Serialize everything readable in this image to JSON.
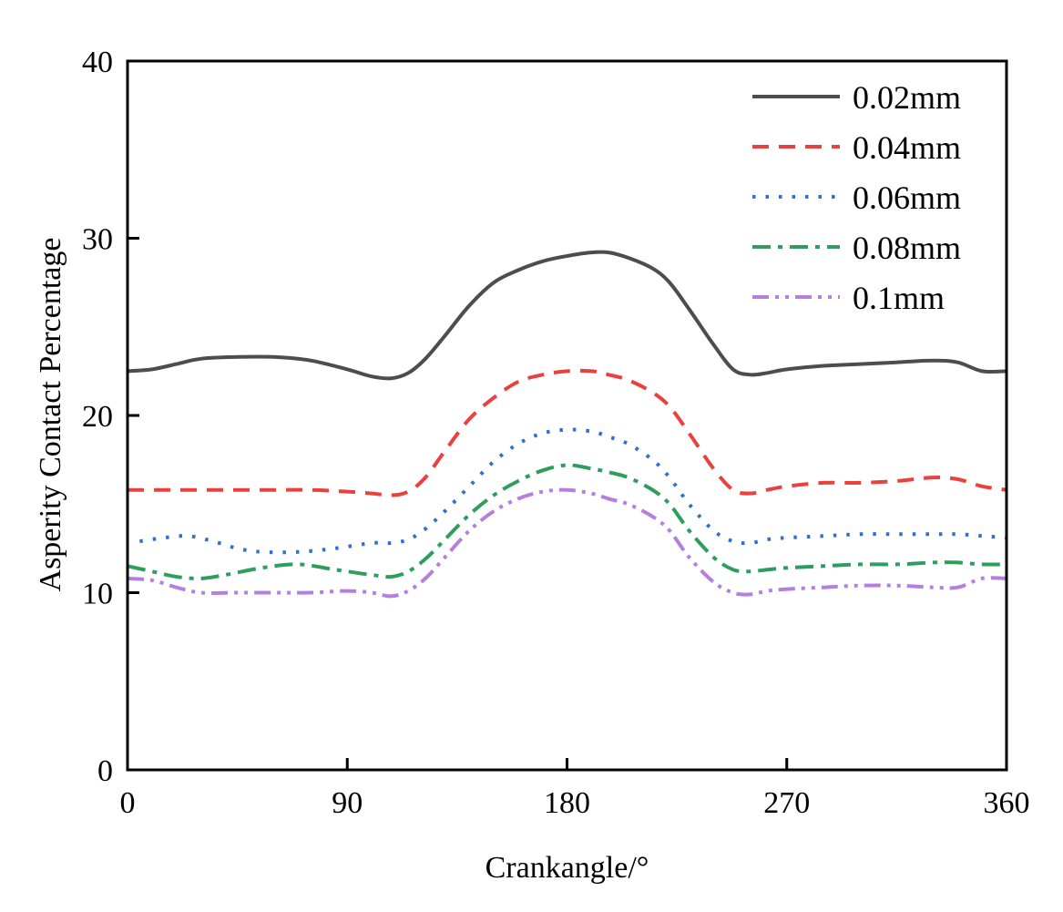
{
  "chart_data": {
    "type": "line",
    "title": "",
    "xlabel": "Crankangle/°",
    "ylabel": "Asperity Contact Percentage",
    "xlim": [
      0,
      360
    ],
    "ylim": [
      0,
      40
    ],
    "xticks": [
      0,
      90,
      180,
      270,
      360
    ],
    "yticks": [
      0,
      10,
      20,
      30,
      40
    ],
    "xtick_labels": [
      "0",
      "90",
      "180",
      "270",
      "360"
    ],
    "ytick_labels": [
      "0",
      "10",
      "20",
      "30",
      "40"
    ],
    "grid": false,
    "legend_position": "top-right",
    "series": [
      {
        "name": "0.02mm",
        "color": "#4d4d4d",
        "dash": "solid",
        "x": [
          0,
          10,
          20,
          30,
          45,
          60,
          75,
          90,
          100,
          108,
          115,
          122,
          130,
          140,
          150,
          160,
          170,
          180,
          190,
          197,
          205,
          215,
          222,
          230,
          240,
          248,
          255,
          262,
          270,
          285,
          300,
          315,
          330,
          340,
          350,
          360
        ],
        "y": [
          22.5,
          22.6,
          22.9,
          23.2,
          23.3,
          23.3,
          23.1,
          22.6,
          22.2,
          22.1,
          22.4,
          23.2,
          24.5,
          26.2,
          27.5,
          28.2,
          28.7,
          29.0,
          29.2,
          29.2,
          28.9,
          28.3,
          27.5,
          26.0,
          24.0,
          22.6,
          22.3,
          22.4,
          22.6,
          22.8,
          22.9,
          23.0,
          23.1,
          23.0,
          22.5,
          22.5
        ]
      },
      {
        "name": "0.04mm",
        "color": "#e8413e",
        "dash": "dashed",
        "x": [
          0,
          15,
          30,
          45,
          60,
          75,
          90,
          100,
          108,
          115,
          122,
          130,
          140,
          150,
          160,
          170,
          180,
          190,
          197,
          205,
          215,
          222,
          230,
          240,
          248,
          255,
          262,
          270,
          285,
          300,
          315,
          330,
          340,
          350,
          360
        ],
        "y": [
          15.8,
          15.8,
          15.8,
          15.8,
          15.8,
          15.8,
          15.7,
          15.6,
          15.5,
          15.7,
          16.5,
          18.0,
          19.8,
          21.0,
          21.9,
          22.3,
          22.5,
          22.5,
          22.3,
          22.0,
          21.3,
          20.5,
          19.0,
          17.0,
          15.8,
          15.6,
          15.8,
          16.0,
          16.2,
          16.2,
          16.3,
          16.5,
          16.4,
          16.0,
          15.8
        ]
      },
      {
        "name": "0.06mm",
        "color": "#2e6fd0",
        "dash": "dotted",
        "x": [
          5,
          15,
          25,
          35,
          45,
          55,
          70,
          85,
          100,
          108,
          115,
          122,
          130,
          140,
          150,
          160,
          170,
          180,
          190,
          197,
          205,
          215,
          222,
          230,
          240,
          248,
          255,
          262,
          270,
          285,
          300,
          315,
          330,
          340,
          350,
          360
        ],
        "y": [
          12.9,
          13.1,
          13.2,
          12.9,
          12.5,
          12.3,
          12.3,
          12.5,
          12.8,
          12.8,
          13.0,
          13.6,
          14.6,
          16.0,
          17.4,
          18.4,
          19.0,
          19.2,
          19.1,
          18.8,
          18.4,
          17.5,
          16.5,
          15.0,
          13.5,
          12.9,
          12.8,
          13.0,
          13.1,
          13.2,
          13.3,
          13.3,
          13.3,
          13.3,
          13.2,
          13.1
        ]
      },
      {
        "name": "0.08mm",
        "color": "#2e9e5e",
        "dash": "dashdot",
        "x": [
          0,
          10,
          20,
          30,
          40,
          55,
          70,
          85,
          100,
          108,
          115,
          122,
          130,
          140,
          150,
          160,
          170,
          180,
          190,
          197,
          205,
          215,
          222,
          230,
          240,
          248,
          255,
          262,
          270,
          285,
          300,
          315,
          330,
          340,
          350,
          360
        ],
        "y": [
          11.5,
          11.2,
          10.9,
          10.8,
          11.0,
          11.4,
          11.6,
          11.3,
          11.0,
          10.9,
          11.2,
          11.9,
          13.0,
          14.4,
          15.5,
          16.3,
          16.9,
          17.2,
          17.0,
          16.8,
          16.5,
          15.8,
          15.0,
          13.5,
          12.0,
          11.3,
          11.2,
          11.3,
          11.4,
          11.5,
          11.6,
          11.6,
          11.7,
          11.7,
          11.6,
          11.6
        ]
      },
      {
        "name": "0.1mm",
        "color": "#b57fe0",
        "dash": "dashdotdot",
        "x": [
          0,
          10,
          20,
          30,
          45,
          60,
          75,
          90,
          100,
          108,
          115,
          122,
          130,
          140,
          150,
          160,
          170,
          180,
          190,
          197,
          205,
          215,
          222,
          230,
          240,
          248,
          255,
          262,
          270,
          285,
          300,
          315,
          330,
          340,
          350,
          360
        ],
        "y": [
          10.8,
          10.7,
          10.3,
          10.0,
          10.0,
          10.0,
          10.0,
          10.1,
          10.0,
          9.8,
          10.1,
          10.8,
          12.0,
          13.5,
          14.6,
          15.3,
          15.7,
          15.8,
          15.6,
          15.3,
          15.0,
          14.3,
          13.5,
          12.0,
          10.6,
          10.0,
          9.9,
          10.1,
          10.2,
          10.3,
          10.4,
          10.4,
          10.3,
          10.3,
          10.8,
          10.8
        ]
      }
    ]
  }
}
